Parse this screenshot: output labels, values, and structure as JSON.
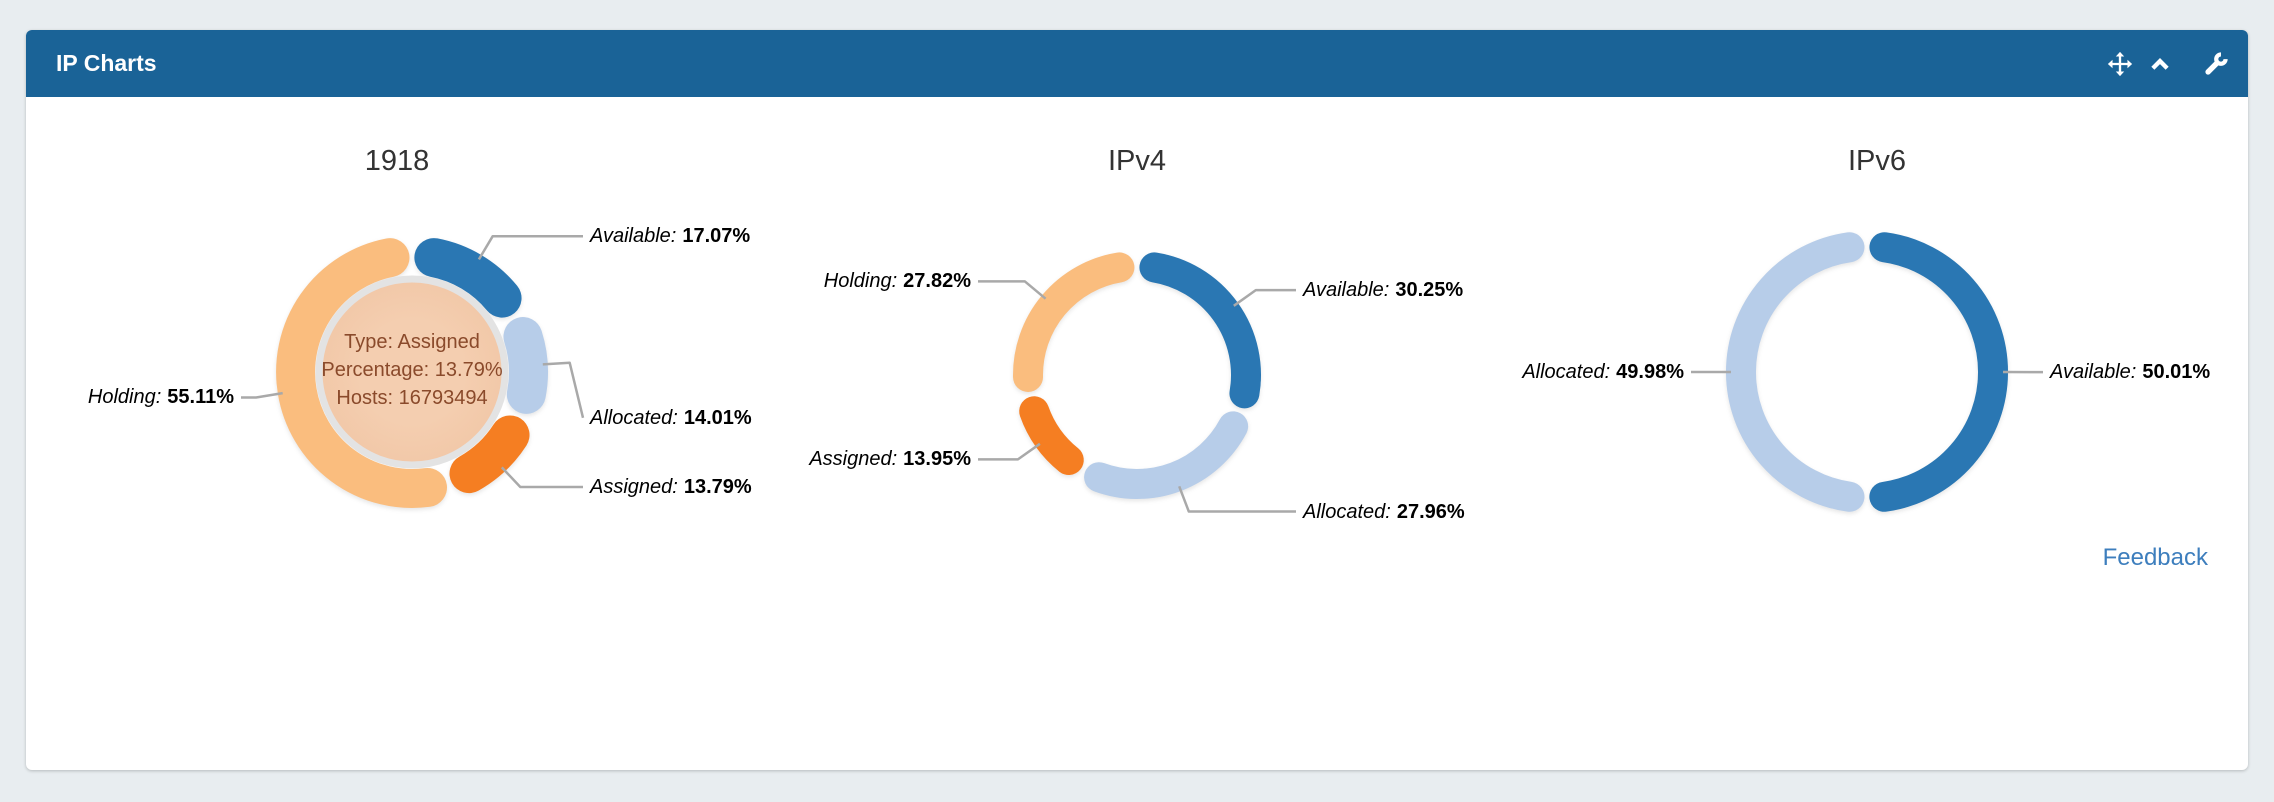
{
  "panel": {
    "title": "IP Charts",
    "feedback_label": "Feedback",
    "header_icons": [
      "move-icon",
      "collapse-icon",
      "settings-wrench-icon"
    ]
  },
  "colors": {
    "page_bg": "#e8edf0",
    "header_bg": "#1a6397",
    "available": "#2a77b3",
    "allocated": "#b7cde9",
    "assigned": "#f57e22",
    "holding": "#fabd7e",
    "connector": "#a9a9a9",
    "tooltip_fill": "#f2c8a8",
    "tooltip_ring": "#e3e3e3",
    "tooltip_text": "#8a4a2b",
    "link": "#3d7ebd"
  },
  "chart_data": [
    {
      "type": "pie",
      "donut": true,
      "title": "1918",
      "slices": [
        {
          "label": "Available",
          "value": 17.07,
          "color": "available"
        },
        {
          "label": "Allocated",
          "value": 14.01,
          "color": "allocated",
          "label_dy": 55
        },
        {
          "label": "Assigned",
          "value": 13.79,
          "color": "assigned"
        },
        {
          "label": "Holding",
          "value": 55.11,
          "color": "holding"
        }
      ],
      "center_tooltip": {
        "lines": [
          "Type: Assigned",
          "Percentage: 13.79%",
          "Hosts: 16793494"
        ]
      }
    },
    {
      "type": "pie",
      "donut": true,
      "title": "IPv4",
      "slices": [
        {
          "label": "Available",
          "value": 30.25,
          "color": "available"
        },
        {
          "label": "Allocated",
          "value": 27.96,
          "color": "allocated"
        },
        {
          "label": "Assigned",
          "value": 13.95,
          "color": "assigned"
        },
        {
          "label": "Holding",
          "value": 27.82,
          "color": "holding"
        }
      ]
    },
    {
      "type": "pie",
      "donut": true,
      "title": "IPv6",
      "slices": [
        {
          "label": "Available",
          "value": 50.01,
          "color": "available"
        },
        {
          "label": "Allocated",
          "value": 49.98,
          "color": "allocated"
        }
      ]
    }
  ]
}
